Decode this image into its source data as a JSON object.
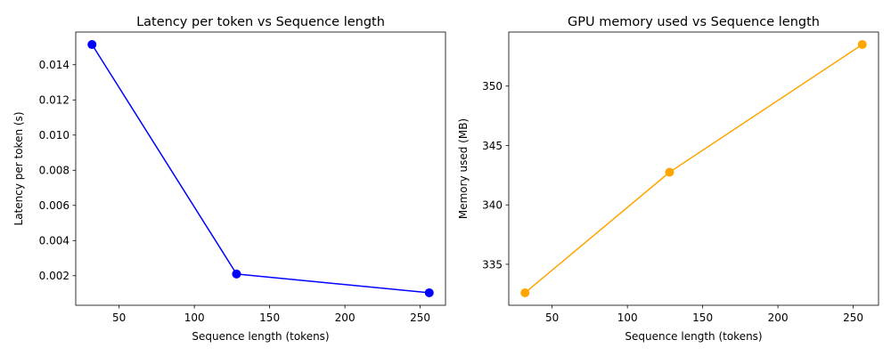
{
  "chart_data": [
    {
      "type": "line",
      "title": "Latency per token vs Sequence length",
      "xlabel": "Sequence length (tokens)",
      "ylabel": "Latency per token (s)",
      "x": [
        32,
        128,
        256
      ],
      "series": [
        {
          "values": [
            0.01515,
            0.0021,
            0.00103
          ],
          "color": "#0000ff"
        }
      ],
      "xlim": [
        21.2,
        266.8
      ],
      "ylim": [
        0.00032,
        0.01586
      ],
      "xticks": [
        50,
        100,
        150,
        200,
        250
      ],
      "xtick_labels": [
        "50",
        "100",
        "150",
        "200",
        "250"
      ],
      "yticks": [
        0.002,
        0.004,
        0.006,
        0.008,
        0.01,
        0.012,
        0.014
      ],
      "ytick_labels": [
        "0.002",
        "0.004",
        "0.006",
        "0.008",
        "0.010",
        "0.012",
        "0.014"
      ],
      "grid": false,
      "marker": "circle"
    },
    {
      "type": "line",
      "title": "GPU memory used vs Sequence length",
      "xlabel": "Sequence length (tokens)",
      "ylabel": "Memory used (MB)",
      "x": [
        32,
        128,
        256
      ],
      "series": [
        {
          "values": [
            332.6,
            342.75,
            353.5
          ],
          "color": "#ffa500"
        }
      ],
      "xlim": [
        21.2,
        266.8
      ],
      "ylim": [
        331.55,
        354.55
      ],
      "xticks": [
        50,
        100,
        150,
        200,
        250
      ],
      "xtick_labels": [
        "50",
        "100",
        "150",
        "200",
        "250"
      ],
      "yticks": [
        335,
        340,
        345,
        350
      ],
      "ytick_labels": [
        "335",
        "340",
        "345",
        "350"
      ],
      "grid": false,
      "marker": "circle"
    }
  ]
}
